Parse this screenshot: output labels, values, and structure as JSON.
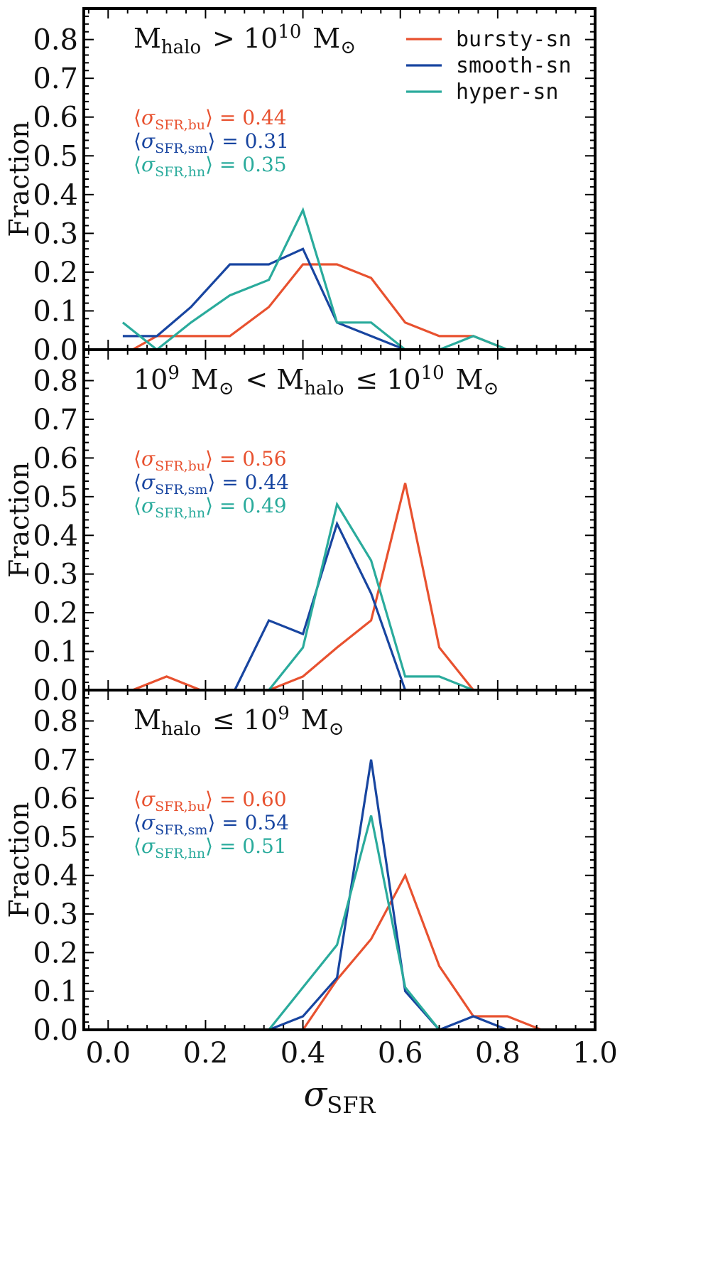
{
  "chart_data": {
    "type": "line",
    "layout": "3 stacked panels sharing x axis",
    "xlabel": "σ_SFR",
    "ylabel": "Fraction",
    "xlim": [
      -0.05,
      1.0
    ],
    "ylim": [
      0.0,
      0.88
    ],
    "x_ticks": [
      "0.0",
      "0.2",
      "0.4",
      "0.6",
      "0.8",
      "1.0"
    ],
    "y_ticks": [
      "0.0",
      "0.1",
      "0.2",
      "0.3",
      "0.4",
      "0.5",
      "0.6",
      "0.7",
      "0.8"
    ],
    "legend": {
      "placement": "top-right of top panel",
      "entries": [
        {
          "name": "bursty-sn",
          "color": "#e8512f"
        },
        {
          "name": "smooth-sn",
          "color": "#1845a0"
        },
        {
          "name": "hyper-sn",
          "color": "#2aab9c"
        }
      ]
    },
    "panels": [
      {
        "label": "M_halo > 10^10 M_⊙",
        "means": [
          {
            "symbol": "bu",
            "value": "0.44",
            "color": "#e8512f"
          },
          {
            "symbol": "sm",
            "value": "0.31",
            "color": "#1845a0"
          },
          {
            "symbol": "hn",
            "value": "0.35",
            "color": "#2aab9c"
          }
        ],
        "series": [
          {
            "name": "bursty-sn",
            "color": "#e8512f",
            "x": [
              0.05,
              0.1,
              0.17,
              0.25,
              0.33,
              0.4,
              0.47,
              0.54,
              0.61,
              0.68,
              0.75,
              0.82
            ],
            "y": [
              0.0,
              0.035,
              0.035,
              0.035,
              0.11,
              0.22,
              0.22,
              0.185,
              0.07,
              0.035,
              0.035,
              0.0
            ]
          },
          {
            "name": "smooth-sn",
            "color": "#1845a0",
            "x": [
              0.03,
              0.1,
              0.17,
              0.25,
              0.33,
              0.4,
              0.47,
              0.54,
              0.61
            ],
            "y": [
              0.035,
              0.035,
              0.11,
              0.22,
              0.22,
              0.26,
              0.07,
              0.035,
              0.0
            ]
          },
          {
            "name": "hyper-sn",
            "color": "#2aab9c",
            "x": [
              0.03,
              0.1,
              0.17,
              0.25,
              0.33,
              0.4,
              0.47,
              0.54,
              0.61,
              0.68,
              0.75,
              0.82
            ],
            "y": [
              0.07,
              0.0,
              0.07,
              0.14,
              0.18,
              0.36,
              0.07,
              0.07,
              0.0,
              0.0,
              0.035,
              0.0
            ]
          }
        ]
      },
      {
        "label": "10^9 M_⊙ < M_halo ≤ 10^10 M_⊙",
        "means": [
          {
            "symbol": "bu",
            "value": "0.56",
            "color": "#e8512f"
          },
          {
            "symbol": "sm",
            "value": "0.44",
            "color": "#1845a0"
          },
          {
            "symbol": "hn",
            "value": "0.49",
            "color": "#2aab9c"
          }
        ],
        "series": [
          {
            "name": "bursty-sn",
            "color": "#e8512f",
            "x": [
              0.05,
              0.12,
              0.19,
              0.26,
              0.33,
              0.4,
              0.47,
              0.54,
              0.61,
              0.68,
              0.75
            ],
            "y": [
              0.0,
              0.035,
              0.0,
              0.0,
              0.0,
              0.035,
              0.11,
              0.18,
              0.535,
              0.11,
              0.0
            ]
          },
          {
            "name": "smooth-sn",
            "color": "#1845a0",
            "x": [
              0.26,
              0.33,
              0.4,
              0.47,
              0.54,
              0.61
            ],
            "y": [
              0.0,
              0.18,
              0.145,
              0.43,
              0.25,
              0.0
            ]
          },
          {
            "name": "hyper-sn",
            "color": "#2aab9c",
            "x": [
              0.33,
              0.4,
              0.47,
              0.54,
              0.61,
              0.68,
              0.75
            ],
            "y": [
              0.0,
              0.11,
              0.48,
              0.335,
              0.035,
              0.035,
              0.0
            ]
          }
        ]
      },
      {
        "label": "M_halo ≤ 10^9 M_⊙",
        "means": [
          {
            "symbol": "bu",
            "value": "0.60",
            "color": "#e8512f"
          },
          {
            "symbol": "sm",
            "value": "0.54",
            "color": "#1845a0"
          },
          {
            "symbol": "hn",
            "value": "0.51",
            "color": "#2aab9c"
          }
        ],
        "series": [
          {
            "name": "bursty-sn",
            "color": "#e8512f",
            "x": [
              0.4,
              0.47,
              0.54,
              0.61,
              0.68,
              0.75,
              0.82,
              0.89
            ],
            "y": [
              0.0,
              0.13,
              0.235,
              0.4,
              0.165,
              0.035,
              0.035,
              0.0
            ]
          },
          {
            "name": "smooth-sn",
            "color": "#1845a0",
            "x": [
              0.33,
              0.4,
              0.47,
              0.54,
              0.61,
              0.68,
              0.75,
              0.82
            ],
            "y": [
              0.0,
              0.035,
              0.135,
              0.7,
              0.1,
              0.0,
              0.035,
              0.0
            ]
          },
          {
            "name": "hyper-sn",
            "color": "#2aab9c",
            "x": [
              0.33,
              0.4,
              0.47,
              0.54,
              0.61,
              0.68
            ],
            "y": [
              0.0,
              0.11,
              0.22,
              0.555,
              0.11,
              0.0
            ]
          }
        ]
      }
    ]
  }
}
